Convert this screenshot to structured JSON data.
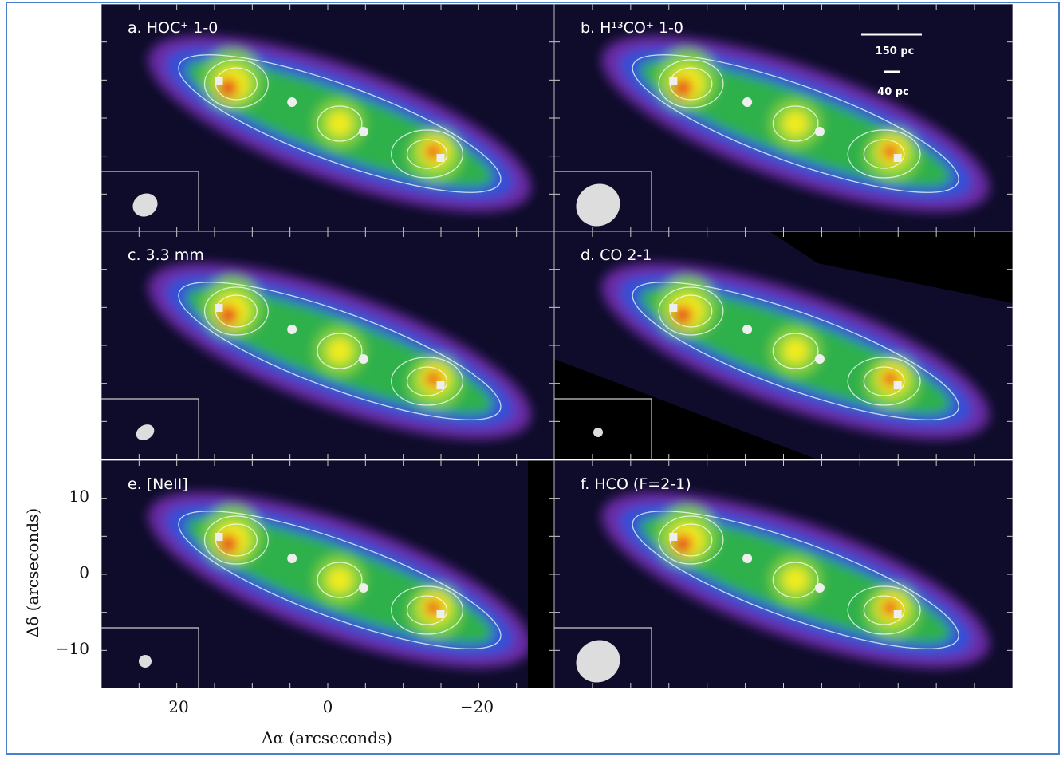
{
  "panels": [
    {
      "label": "a. HOC⁺ 1-0"
    },
    {
      "label": "b. H¹³CO⁺ 1-0"
    },
    {
      "label": "c. 3.3 mm"
    },
    {
      "label": "d. CO 2-1"
    },
    {
      "label": "e. [NeII]"
    },
    {
      "label": "f. HCO (F=2-1)"
    }
  ],
  "scale_bar": {
    "large": "150 pc",
    "small": "40 pc"
  },
  "axes": {
    "x_label": "Δα (arcseconds)",
    "y_label": "Δδ (arcseconds)",
    "x_ticks": [
      "20",
      "0",
      "−20"
    ],
    "y_ticks": [
      "10",
      "0",
      "−10"
    ]
  }
}
